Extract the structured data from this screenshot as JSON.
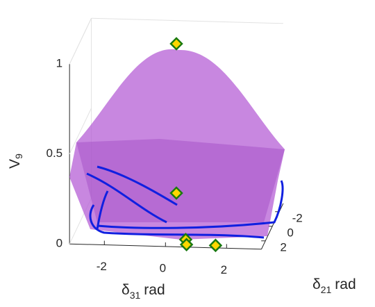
{
  "chart_data": {
    "type": "surface3d",
    "xlabel": {
      "base": "δ",
      "subscript": "31",
      "unit": "rad"
    },
    "ylabel": {
      "base": "δ",
      "subscript": "21",
      "unit": "rad"
    },
    "zlabel": {
      "base": "V",
      "subscript": "9"
    },
    "xlim": [
      -3.14,
      3.14
    ],
    "xticks": [
      -2,
      0,
      2
    ],
    "ylim": [
      -3.14,
      3.14
    ],
    "yticks": [
      -2,
      0,
      2
    ],
    "zlim": [
      0,
      1
    ],
    "zticks": [
      0,
      0.5,
      1
    ],
    "surface_color": "#b55fd6",
    "curve_color": "#1020e0",
    "markers": {
      "color": "#ffd700",
      "edge": "#1a7a10",
      "x": [
        0,
        0,
        0.6,
        0.65,
        1.6
      ],
      "y": [
        0,
        0,
        2.6,
        2.8,
        2.8
      ],
      "z": [
        1,
        0.17,
        0.02,
        0,
        0
      ]
    }
  }
}
